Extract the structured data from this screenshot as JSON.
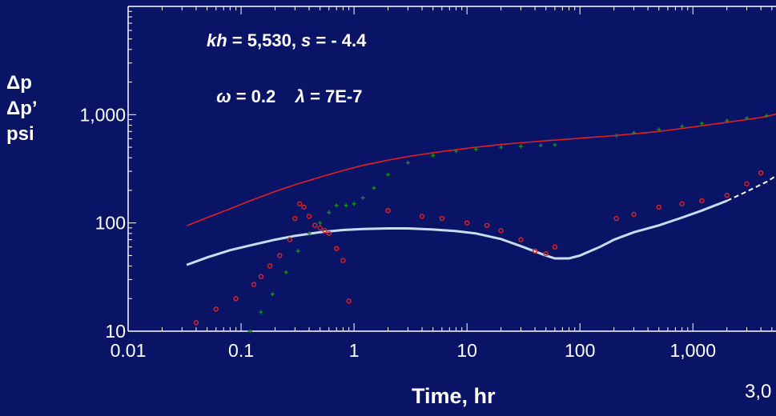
{
  "chart_data": {
    "type": "scatter",
    "title": "",
    "xlabel": "Time, hr",
    "ylabel_lines": [
      "Δp",
      "Δp’",
      "psi"
    ],
    "x_scale": "log",
    "y_scale": "log",
    "xlim": [
      0.01,
      6000
    ],
    "ylim": [
      10,
      10000
    ],
    "x_ticks": [
      {
        "value": 0.01,
        "label": "0.01"
      },
      {
        "value": 0.1,
        "label": "0.1"
      },
      {
        "value": 1,
        "label": "1"
      },
      {
        "value": 10,
        "label": "10"
      },
      {
        "value": 100,
        "label": "100"
      },
      {
        "value": 1000,
        "label": "1,000"
      }
    ],
    "y_ticks": [
      {
        "value": 10,
        "label": "10"
      },
      {
        "value": 100,
        "label": "100"
      },
      {
        "value": 1000,
        "label": "1,000"
      }
    ],
    "annotations": [
      {
        "kind": "kh",
        "parts": [
          "kh",
          " = 5,530, ",
          "s",
          " = - 4.4"
        ]
      },
      {
        "kind": "omega",
        "parts": [
          "ω",
          " = 0.2    ",
          "λ",
          " = 7E-7"
        ]
      }
    ],
    "corner_text": "3,0",
    "series": [
      {
        "style": "line",
        "color": "#e02020",
        "x": [
          0.033,
          0.05,
          0.08,
          0.12,
          0.2,
          0.3,
          0.5,
          0.8,
          1.2,
          2,
          3,
          5,
          8,
          12,
          20,
          30,
          50,
          80,
          120,
          200,
          300,
          500,
          800,
          1200,
          2000,
          3000,
          4500,
          6000
        ],
        "y": [
          94,
          112,
          135,
          160,
          195,
          225,
          265,
          305,
          340,
          380,
          410,
          445,
          475,
          500,
          530,
          550,
          575,
          595,
          615,
          640,
          665,
          700,
          745,
          790,
          850,
          900,
          960,
          1040
        ]
      },
      {
        "style": "line",
        "color": "#c8dcf0",
        "x": [
          0.033,
          0.05,
          0.08,
          0.12,
          0.2,
          0.3,
          0.5,
          0.8,
          1.2,
          2,
          3,
          5,
          8,
          12,
          20,
          30,
          50,
          60,
          80,
          100,
          150,
          200,
          300,
          500,
          800,
          1200,
          2000
        ],
        "y": [
          41,
          48,
          56,
          62,
          70,
          76,
          82,
          86,
          88,
          89,
          89,
          87,
          84,
          80,
          71,
          61,
          50,
          47,
          47,
          50,
          60,
          70,
          82,
          95,
          112,
          130,
          160
        ]
      },
      {
        "style": "dashed",
        "color": "#ffffff",
        "x": [
          2000,
          3000,
          4500,
          6000
        ],
        "y": [
          160,
          195,
          240,
          290
        ]
      },
      {
        "style": "markers",
        "marker": "plus",
        "color": "#1a8c1a",
        "x": [
          0.12,
          0.15,
          0.19,
          0.25,
          0.32,
          0.4,
          0.5,
          0.6,
          0.7,
          0.85,
          1.0,
          1.2,
          1.5,
          2,
          3,
          5,
          8,
          12,
          20,
          30,
          45,
          60,
          210,
          300,
          500,
          800,
          1200,
          2000,
          3000,
          4500
        ],
        "y": [
          10,
          15,
          22,
          35,
          55,
          80,
          100,
          125,
          145,
          145,
          150,
          170,
          210,
          280,
          360,
          420,
          460,
          480,
          500,
          510,
          520,
          525,
          640,
          680,
          730,
          780,
          830,
          880,
          930,
          980
        ]
      },
      {
        "style": "markers",
        "marker": "circle",
        "color": "#e82020",
        "x": [
          0.04,
          0.06,
          0.09,
          0.13,
          0.15,
          0.18,
          0.22,
          0.27,
          0.3,
          0.33,
          0.36,
          0.4,
          0.45,
          0.5,
          0.55,
          0.6,
          0.7,
          0.8,
          0.9,
          2,
          4,
          6,
          10,
          15,
          20,
          30,
          40,
          50,
          60,
          210,
          300,
          500,
          800,
          1200,
          2000,
          3000,
          4000
        ],
        "y": [
          12,
          16,
          20,
          27,
          32,
          40,
          50,
          70,
          110,
          150,
          140,
          115,
          95,
          90,
          85,
          80,
          58,
          45,
          19,
          130,
          115,
          110,
          100,
          95,
          85,
          70,
          55,
          52,
          60,
          110,
          120,
          140,
          150,
          160,
          180,
          230,
          290
        ]
      }
    ]
  }
}
